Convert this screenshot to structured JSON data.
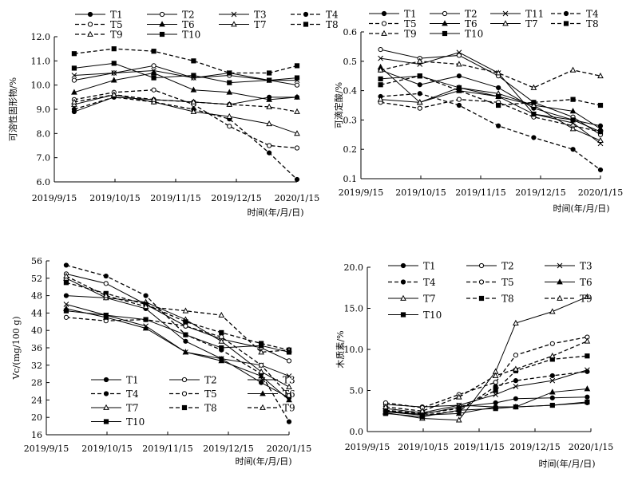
{
  "chart_data": [
    {
      "id": "soluble-solids",
      "type": "line",
      "xlabel": "时间(年/月/日)",
      "ylabel": "可溶性固形物/%",
      "ylim": [
        6.0,
        12.0
      ],
      "yticks": [
        "6.0",
        "7.0",
        "8.0",
        "9.0",
        "10.0",
        "11.0",
        "12.0"
      ],
      "xlim": [
        "2019-09-15",
        "2020-01-15"
      ],
      "xticks": [
        "2019/9/15",
        "2019/10/15",
        "2019/11/15",
        "2019/12/15",
        "2020/1/15"
      ],
      "x": [
        "2019-09-25",
        "2019-10-15",
        "2019-11-04",
        "2019-11-24",
        "2019-12-12",
        "2020-01-01",
        "2020-01-15"
      ],
      "legend": {
        "columns": 4
      },
      "series": [
        {
          "name": "T1",
          "values": [
            8.9,
            9.5,
            9.4,
            9.3,
            9.2,
            9.5,
            9.5
          ]
        },
        {
          "name": "T2",
          "values": [
            10.2,
            10.5,
            10.8,
            10.3,
            10.4,
            10.2,
            10.0
          ]
        },
        {
          "name": "T3",
          "values": [
            10.4,
            10.5,
            10.6,
            10.3,
            10.5,
            10.2,
            10.2
          ]
        },
        {
          "name": "T4",
          "values": [
            9.0,
            9.5,
            9.3,
            9.0,
            8.6,
            7.2,
            6.1
          ]
        },
        {
          "name": "T5",
          "values": [
            9.4,
            9.7,
            9.8,
            9.2,
            8.3,
            7.5,
            7.4
          ]
        },
        {
          "name": "T6",
          "values": [
            9.7,
            10.2,
            10.5,
            9.8,
            9.7,
            9.4,
            9.5
          ]
        },
        {
          "name": "T7",
          "values": [
            9.2,
            9.6,
            9.3,
            8.9,
            8.7,
            8.4,
            8.0
          ]
        },
        {
          "name": "T8",
          "values": [
            11.3,
            11.5,
            11.4,
            11.0,
            10.5,
            10.5,
            10.8
          ]
        },
        {
          "name": "T9",
          "values": [
            9.3,
            9.6,
            9.4,
            9.3,
            9.2,
            9.1,
            8.9
          ]
        },
        {
          "name": "T10",
          "values": [
            10.7,
            10.9,
            10.3,
            10.4,
            10.1,
            10.2,
            10.3
          ]
        }
      ]
    },
    {
      "id": "titratable-acid",
      "type": "line",
      "xlabel": "时间(年/月/日)",
      "ylabel": "可滴定酸/%",
      "ylim": [
        0.1,
        0.6
      ],
      "yticks": [
        "0.1",
        "0.2",
        "0.3",
        "0.4",
        "0.5",
        "0.6"
      ],
      "xlim": [
        "2019-09-15",
        "2020-01-15"
      ],
      "xticks": [
        "2019/9/15",
        "2019/10/15",
        "2019/11/15",
        "2019/12/15",
        "2020/1/15"
      ],
      "x": [
        "2019-09-25",
        "2019-10-15",
        "2019-11-04",
        "2019-11-24",
        "2019-12-12",
        "2020-01-01",
        "2020-01-15"
      ],
      "legend": {
        "columns": 4
      },
      "series": [
        {
          "name": "T1",
          "values": [
            0.47,
            0.42,
            0.45,
            0.41,
            0.34,
            0.3,
            0.28
          ]
        },
        {
          "name": "T2",
          "values": [
            0.54,
            0.51,
            0.52,
            0.45,
            0.36,
            0.31,
            0.25
          ]
        },
        {
          "name": "T11",
          "values": [
            0.51,
            0.49,
            0.53,
            0.46,
            0.32,
            0.29,
            0.22
          ]
        },
        {
          "name": "T4",
          "values": [
            0.38,
            0.39,
            0.35,
            0.28,
            0.24,
            0.2,
            0.13
          ]
        },
        {
          "name": "T5",
          "values": [
            0.36,
            0.34,
            0.37,
            0.36,
            0.31,
            0.28,
            0.26
          ]
        },
        {
          "name": "T6",
          "values": [
            0.48,
            0.36,
            0.4,
            0.38,
            0.35,
            0.33,
            0.27
          ]
        },
        {
          "name": "T7",
          "values": [
            0.37,
            0.36,
            0.41,
            0.39,
            0.35,
            0.27,
            0.23
          ]
        },
        {
          "name": "T8",
          "values": [
            0.42,
            0.45,
            0.4,
            0.35,
            0.36,
            0.37,
            0.35
          ]
        },
        {
          "name": "T9",
          "values": [
            0.47,
            0.5,
            0.49,
            0.46,
            0.41,
            0.47,
            0.45
          ]
        },
        {
          "name": "T10",
          "values": [
            0.44,
            0.45,
            0.41,
            0.38,
            0.32,
            0.3,
            0.26
          ]
        }
      ]
    },
    {
      "id": "vitamin-c",
      "type": "line",
      "xlabel": "时间(年/月/日)",
      "ylabel": "Vc/(mg/100 g)",
      "ylim": [
        16,
        56
      ],
      "yticks": [
        "16",
        "20",
        "24",
        "28",
        "32",
        "36",
        "40",
        "44",
        "48",
        "52",
        "56"
      ],
      "xlim": [
        "2019-09-15",
        "2020-01-15"
      ],
      "xticks": [
        "2019/9/15",
        "2019/10/15",
        "2019/11/15",
        "2019/12/15",
        "2020/1/15"
      ],
      "x": [
        "2019-09-25",
        "2019-10-15",
        "2019-11-04",
        "2019-11-24",
        "2019-12-12",
        "2020-01-01",
        "2020-01-15"
      ],
      "legend": {
        "columns": 3
      },
      "series": [
        {
          "name": "T1",
          "values": [
            48.0,
            47.5,
            45.0,
            37.5,
            33.5,
            28.0,
            24.5
          ]
        },
        {
          "name": "T2",
          "values": [
            53.0,
            50.8,
            46.0,
            41.0,
            38.0,
            36.0,
            33.0
          ]
        },
        {
          "name": "T3",
          "values": [
            46.0,
            43.5,
            41.0,
            35.0,
            33.5,
            32.0,
            29.5
          ]
        },
        {
          "name": "T4",
          "values": [
            55.0,
            52.5,
            48.0,
            39.0,
            35.5,
            30.0,
            19.0
          ]
        },
        {
          "name": "T5",
          "values": [
            43.0,
            42.2,
            42.5,
            41.0,
            38.5,
            32.0,
            25.0
          ]
        },
        {
          "name": "T6",
          "values": [
            45.0,
            43.0,
            40.5,
            35.0,
            33.0,
            29.5,
            24.0
          ]
        },
        {
          "name": "T7",
          "values": [
            52.0,
            47.5,
            46.5,
            42.5,
            37.5,
            30.5,
            27.0
          ]
        },
        {
          "name": "T8",
          "values": [
            51.0,
            48.5,
            46.0,
            42.0,
            39.5,
            37.0,
            35.5
          ]
        },
        {
          "name": "T9",
          "values": [
            52.5,
            48.0,
            45.5,
            44.5,
            43.5,
            35.0,
            35.5
          ]
        },
        {
          "name": "T10",
          "values": [
            44.5,
            43.5,
            42.5,
            39.0,
            36.0,
            36.5,
            35.0
          ]
        }
      ]
    },
    {
      "id": "lignin",
      "type": "line",
      "xlabel": "时间(年/月/日)",
      "ylabel": "木质素/%",
      "ylim": [
        0.0,
        20.0
      ],
      "yticks": [
        "0.0",
        "5.0",
        "10.0",
        "15.0",
        "20.0"
      ],
      "xlim": [
        "2019-09-15",
        "2020-01-15"
      ],
      "xticks": [
        "2019/9/15",
        "2019/10/15",
        "2019/11/15",
        "2019/12/15",
        "2020/1/15"
      ],
      "x": [
        "2019-09-25",
        "2019-10-15",
        "2019-11-04",
        "2019-11-24",
        "2019-12-05",
        "2019-12-25",
        "2020-01-13"
      ],
      "legend": {
        "columns": 3
      },
      "series": [
        {
          "name": "T1",
          "values": [
            2.5,
            2.1,
            3.0,
            3.5,
            4.0,
            4.1,
            4.2
          ]
        },
        {
          "name": "T2",
          "values": [
            3.3,
            3.0,
            3.2,
            3.0,
            3.0,
            3.2,
            3.5
          ]
        },
        {
          "name": "T3",
          "values": [
            2.8,
            2.3,
            3.2,
            4.5,
            5.5,
            6.2,
            7.5
          ]
        },
        {
          "name": "T4",
          "values": [
            2.5,
            2.0,
            2.5,
            5.5,
            6.2,
            6.8,
            7.3
          ]
        },
        {
          "name": "T5",
          "values": [
            3.5,
            2.9,
            4.5,
            6.0,
            9.3,
            10.7,
            11.5
          ]
        },
        {
          "name": "T6",
          "values": [
            2.4,
            2.0,
            2.2,
            3.0,
            3.0,
            4.8,
            5.2
          ]
        },
        {
          "name": "T7",
          "values": [
            2.3,
            1.6,
            1.4,
            7.3,
            13.2,
            14.6,
            16.4
          ]
        },
        {
          "name": "T8",
          "values": [
            2.6,
            2.2,
            2.8,
            5.0,
            7.4,
            8.8,
            9.2
          ]
        },
        {
          "name": "T9",
          "values": [
            3.0,
            2.5,
            4.2,
            6.8,
            7.6,
            9.2,
            11.0
          ]
        },
        {
          "name": "T10",
          "values": [
            2.2,
            1.8,
            2.6,
            2.8,
            3.0,
            3.2,
            3.6
          ]
        }
      ]
    }
  ]
}
